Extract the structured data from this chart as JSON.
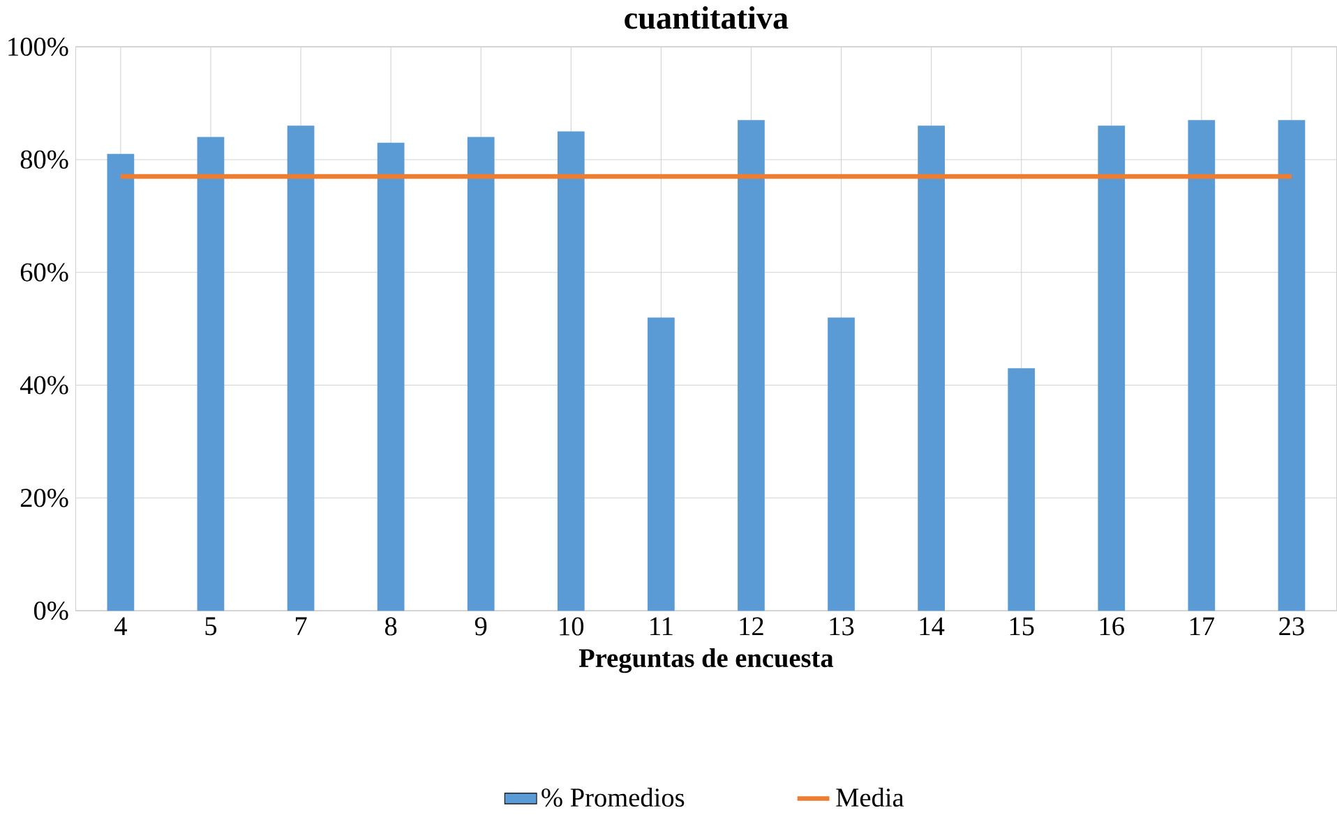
{
  "chart_data": {
    "type": "bar",
    "title": "cuantitativa",
    "xlabel": "Preguntas de encuesta",
    "categories": [
      "4",
      "5",
      "7",
      "8",
      "9",
      "10",
      "11",
      "12",
      "13",
      "14",
      "15",
      "16",
      "17",
      "23"
    ],
    "series": [
      {
        "name": "% Promedios",
        "color": "#5b9bd5",
        "values": [
          81,
          84,
          86,
          83,
          84,
          85,
          52,
          87,
          52,
          86,
          43,
          86,
          87,
          87
        ]
      },
      {
        "name": "Media",
        "type": "line",
        "color": "#ed7d31",
        "values": [
          77,
          77,
          77,
          77,
          77,
          77,
          77,
          77,
          77,
          77,
          77,
          77,
          77,
          77
        ]
      }
    ],
    "ylim": [
      0,
      100
    ],
    "yticks": [
      {
        "value": 0,
        "label": "0%"
      },
      {
        "value": 20,
        "label": "20%"
      },
      {
        "value": 40,
        "label": "40%"
      },
      {
        "value": 60,
        "label": "60%"
      },
      {
        "value": 80,
        "label": "80%"
      },
      {
        "value": 100,
        "label": "100%"
      }
    ],
    "grid": true,
    "legend": "bottom"
  }
}
